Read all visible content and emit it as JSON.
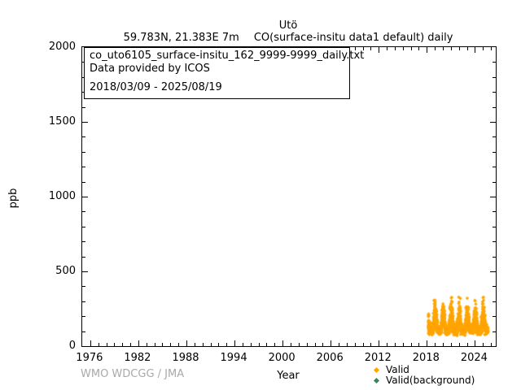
{
  "header": {
    "title": "Utö",
    "station_coords": "59.783N, 21.383E 7m",
    "parameter": "CO(surface-insitu data1 default) daily"
  },
  "annotation": {
    "line1": "co_uto6105_surface-insitu_162_9999-9999_daily.txt",
    "line2": "Data provided by ICOS",
    "line3": "2018/03/09 - 2025/08/19"
  },
  "footer": {
    "credit": "WMO WDCGG / JMA"
  },
  "colors": {
    "valid": "#FFA500",
    "valid_background": "#2E8B57",
    "axis": "#000000",
    "credit_gray": "#A9A9A9",
    "background": "#FFFFFF"
  },
  "chart_data": {
    "type": "scatter",
    "title": "Utö",
    "subtitle": "59.783N, 21.383E 7m    CO(surface-insitu data1 default) daily",
    "xlabel": "Year",
    "ylabel": "ppb",
    "xlim": [
      1975,
      2026.6
    ],
    "ylim": [
      0,
      2000
    ],
    "xticks": [
      1976,
      1982,
      1988,
      1994,
      2000,
      2006,
      2012,
      2018,
      2024
    ],
    "x_minor_step": 1,
    "yticks": [
      0,
      500,
      1000,
      1500,
      2000
    ],
    "y_minor_step": 100,
    "grid": false,
    "legend_position": "bottom-right",
    "series": [
      {
        "name": "Valid",
        "marker": "diamond",
        "color": "#FFA500",
        "cadence": "daily",
        "date_start": "2018/03/09",
        "date_end": "2025/08/19",
        "x_start": 2018.19,
        "x_end": 2025.63,
        "y_min": 68,
        "y_max": 330,
        "distribution": {
          "summer_mean": 95,
          "winter_mean": 150,
          "winter_top_typical": 270,
          "peak_window": [
            2018.72,
            2019.06
          ],
          "peak_value": 330,
          "seed": 42
        },
        "points_visible": true
      },
      {
        "name": "Valid(background)",
        "marker": "diamond",
        "color": "#2E8B57",
        "points_visible": false
      }
    ]
  }
}
